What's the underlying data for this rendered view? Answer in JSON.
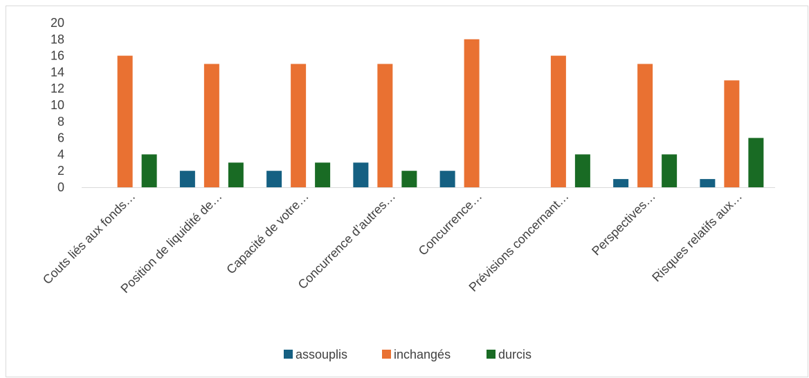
{
  "chart_data": {
    "type": "bar",
    "categories": [
      "Couts liés aux fonds…",
      "Position de liquidité de…",
      "Capacité de votre…",
      "Concurrence d’autres…",
      "Concurrence…",
      "Prévisions concernant…",
      "Perspectives…",
      "Risques relatifs aux…"
    ],
    "series": [
      {
        "name": "assouplis",
        "color": "#156082",
        "values": [
          0,
          2,
          2,
          3,
          2,
          0,
          1,
          1
        ]
      },
      {
        "name": "inchangés",
        "color": "#E97132",
        "values": [
          16,
          15,
          15,
          15,
          18,
          16,
          15,
          13
        ]
      },
      {
        "name": "durcis",
        "color": "#196B24",
        "values": [
          4,
          3,
          3,
          2,
          0,
          4,
          4,
          6
        ]
      }
    ],
    "yticks": [
      "0",
      "2",
      "4",
      "6",
      "8",
      "10",
      "12",
      "14",
      "16",
      "18",
      "20"
    ],
    "ylim": [
      0,
      20
    ],
    "grid": false,
    "legend": "bottom"
  }
}
